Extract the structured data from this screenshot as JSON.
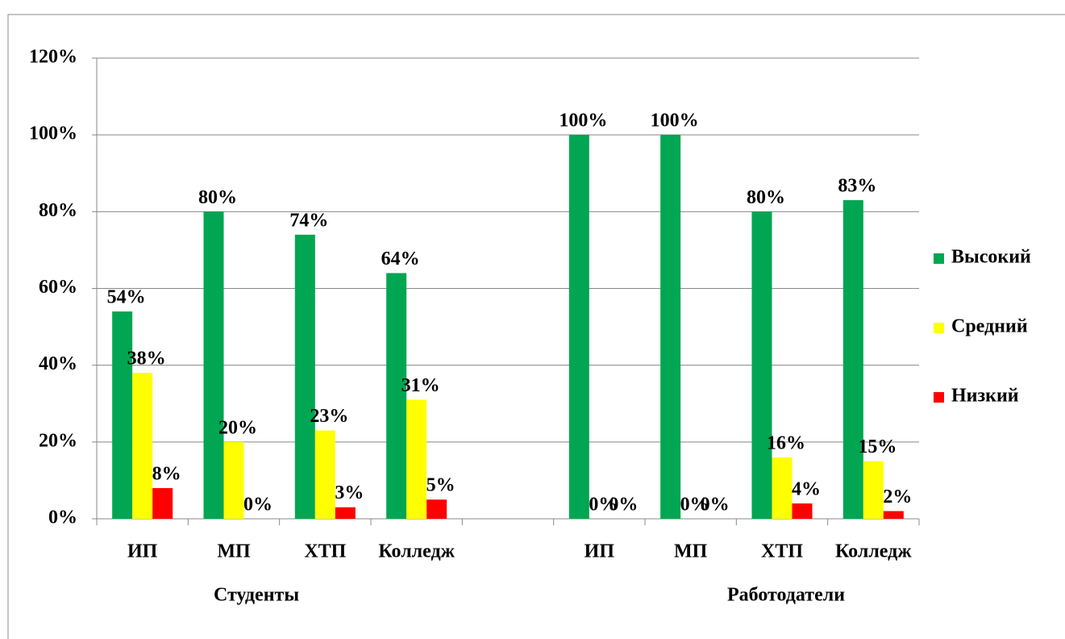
{
  "chart_data": {
    "type": "bar",
    "categories": [
      "ИП",
      "МП",
      "ХТП",
      "Колледж",
      null,
      "ИП",
      "МП",
      "ХТП",
      "Колледж"
    ],
    "groups": [
      "Студенты",
      "Работодатели"
    ],
    "series": [
      {
        "name": "Высокий",
        "color": "#00a651",
        "values": [
          54,
          80,
          74,
          64,
          null,
          100,
          100,
          80,
          83
        ],
        "value_labels": [
          "54%",
          "80%",
          "74%",
          "64%",
          null,
          "100%",
          "100%",
          "80%",
          "83%"
        ]
      },
      {
        "name": "Средний",
        "color": "#ffff00",
        "values": [
          38,
          20,
          23,
          31,
          null,
          0,
          0,
          16,
          15
        ],
        "value_labels": [
          "38%",
          "20%",
          "23%",
          "31%",
          null,
          "0%",
          "0%",
          "16%",
          "15%"
        ]
      },
      {
        "name": "Низкий",
        "color": "#ff0000",
        "values": [
          8,
          0,
          3,
          5,
          null,
          0,
          0,
          4,
          2
        ],
        "value_labels": [
          "8%",
          "0%",
          "3%",
          "5%",
          null,
          "0%",
          "0%",
          "4%",
          "2%"
        ]
      }
    ],
    "ylim": [
      0,
      120
    ],
    "yticks": [
      {
        "value": 0,
        "label": "0%"
      },
      {
        "value": 20,
        "label": "20%"
      },
      {
        "value": 40,
        "label": "40%"
      },
      {
        "value": 60,
        "label": "60%"
      },
      {
        "value": 80,
        "label": "80%"
      },
      {
        "value": 100,
        "label": "100%"
      },
      {
        "value": 120,
        "label": "120%"
      }
    ],
    "grid": true,
    "legend": "right"
  }
}
